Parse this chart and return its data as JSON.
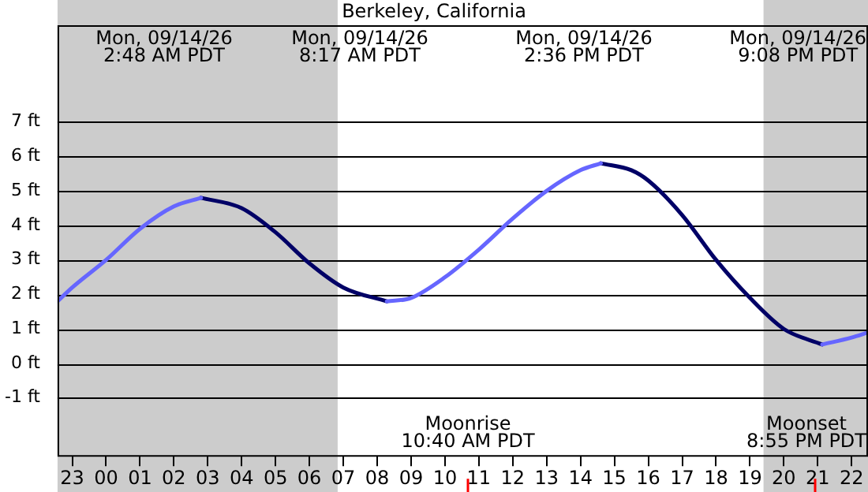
{
  "chart_data": {
    "type": "line",
    "title": "Berkeley, California",
    "series": [
      {
        "color": "#6666ff",
        "x": [
          "--09-13T22:34",
          "--09-13T23:00",
          "--09-14T00:00",
          "--09-14T01:00",
          "--09-14T02:00",
          "--09-14T02:48",
          "--09-14T05:00",
          "--09-14T08:17",
          "--09-14T09:00",
          "--09-14T10:00",
          "--09-14T11:00",
          "--09-14T12:00",
          "--09-14T13:00",
          "--09-14T14:00",
          "--09-14T14:36",
          "--09-14T18:00",
          "--09-14T21:08",
          "--09-14T22:00",
          "--09-14T22:29"
        ],
        "values": [
          1.8,
          2.2,
          3.0,
          3.9,
          4.55,
          4.8,
          null,
          1.8,
          1.9,
          2.5,
          3.3,
          4.2,
          5.0,
          5.6,
          5.8,
          null,
          0.55,
          0.75,
          0.9
        ]
      },
      {
        "color": "#000066",
        "x": [
          "--09-14T02:48",
          "--09-14T04:00",
          "--09-14T05:00",
          "--09-14T06:00",
          "--09-14T07:00",
          "--09-14T08:17",
          "--09-14T11:00",
          "--09-14T14:36",
          "--09-14T15:30",
          "--09-14T16:00",
          "--09-14T17:00",
          "--09-14T18:00",
          "--09-14T19:00",
          "--09-14T20:00",
          "--09-14T21:08"
        ],
        "values": [
          4.8,
          4.5,
          3.8,
          2.9,
          2.2,
          1.8,
          null,
          5.8,
          5.6,
          5.3,
          4.3,
          3.0,
          1.9,
          1.0,
          0.55
        ]
      }
    ],
    "xlim": [
      "--09-13T22:34",
      "--09-14T22:29"
    ],
    "xticks": [
      {
        "value": "--09-13T23:00",
        "label": "23"
      },
      {
        "value": "--09-14T00:00",
        "label": "00"
      },
      {
        "value": "--09-14T01:00",
        "label": "01"
      },
      {
        "value": "--09-14T02:00",
        "label": "02"
      },
      {
        "value": "--09-14T03:00",
        "label": "03"
      },
      {
        "value": "--09-14T04:00",
        "label": "04"
      },
      {
        "value": "--09-14T05:00",
        "label": "05"
      },
      {
        "value": "--09-14T06:00",
        "label": "06"
      },
      {
        "value": "--09-14T07:00",
        "label": "07"
      },
      {
        "value": "--09-14T08:00",
        "label": "08"
      },
      {
        "value": "--09-14T09:00",
        "label": "09"
      },
      {
        "value": "--09-14T10:00",
        "label": "10"
      },
      {
        "value": "--09-14T11:00",
        "label": "11"
      },
      {
        "value": "--09-14T12:00",
        "label": "12"
      },
      {
        "value": "--09-14T13:00",
        "label": "13"
      },
      {
        "value": "--09-14T14:00",
        "label": "14"
      },
      {
        "value": "--09-14T15:00",
        "label": "15"
      },
      {
        "value": "--09-14T16:00",
        "label": "16"
      },
      {
        "value": "--09-14T17:00",
        "label": "17"
      },
      {
        "value": "--09-14T18:00",
        "label": "18"
      },
      {
        "value": "--09-14T19:00",
        "label": "19"
      },
      {
        "value": "--09-14T20:00",
        "label": "20"
      },
      {
        "value": "--09-14T21:00",
        "label": "21"
      },
      {
        "value": "--09-14T22:00",
        "label": "22"
      }
    ],
    "ylim": [
      -2.7,
      9.8
    ],
    "yticks": [
      {
        "value": -1,
        "label": "-1 ft"
      },
      {
        "value": 0,
        "label": "0 ft"
      },
      {
        "value": 1,
        "label": "1 ft"
      },
      {
        "value": 2,
        "label": "2 ft"
      },
      {
        "value": 3,
        "label": "3 ft"
      },
      {
        "value": 4,
        "label": "4 ft"
      },
      {
        "value": 5,
        "label": "5 ft"
      },
      {
        "value": 6,
        "label": "6 ft"
      },
      {
        "value": 7,
        "label": "7 ft"
      }
    ],
    "grid": "y",
    "bands": [
      {
        "axis": "x",
        "from": "--09-13T22:34",
        "to": "--09-14T06:50",
        "color": "#cccccc"
      },
      {
        "axis": "x",
        "from": "--09-14T19:24",
        "to": "--09-14T22:29",
        "color": "#cccccc"
      }
    ],
    "ref_lines": [
      {
        "axis": "x",
        "value": "--09-14T10:40",
        "label": "Moonrise\n10:40 AM PDT",
        "color": "#ff0000"
      },
      {
        "axis": "x",
        "value": "--09-14T20:55",
        "label": "Moonset\n8:55 PM PDT",
        "color": "#ff0000"
      }
    ],
    "annotations": [
      "Mon, 09/14/26\n2:48 AM PDT",
      "Mon, 09/14/26\n8:17 AM PDT",
      "Mon, 09/14/26\n2:36 PM PDT",
      "Mon, 09/14/26\n9:08 PM PDT"
    ]
  }
}
